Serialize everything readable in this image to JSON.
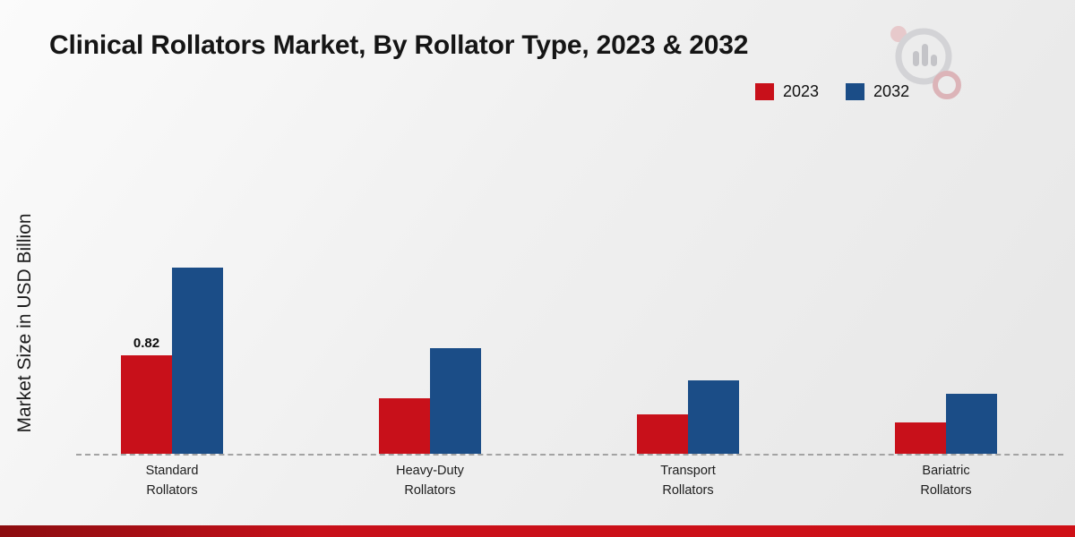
{
  "page": {
    "title": "Clinical Rollators Market, By Rollator Type, 2023 & 2032"
  },
  "chart_data": {
    "type": "bar",
    "title": "Clinical Rollators Market, By Rollator Type, 2023 & 2032",
    "xlabel": "",
    "ylabel": "Market Size in USD Billion",
    "categories": [
      "Standard Rollators",
      "Heavy-Duty Rollators",
      "Transport Rollators",
      "Bariatric Rollators"
    ],
    "series": [
      {
        "name": "2023",
        "color": "#c8101a",
        "values": [
          0.82,
          0.46,
          0.33,
          0.26
        ]
      },
      {
        "name": "2032",
        "color": "#1b4d87",
        "values": [
          1.55,
          0.88,
          0.61,
          0.5
        ]
      }
    ],
    "data_labels": [
      {
        "series_index": 0,
        "category_index": 0,
        "text": "0.82"
      }
    ],
    "ylim": [
      0,
      1.7
    ],
    "grid": false,
    "legend_position": "top-right",
    "baseline_style": "dashed"
  }
}
